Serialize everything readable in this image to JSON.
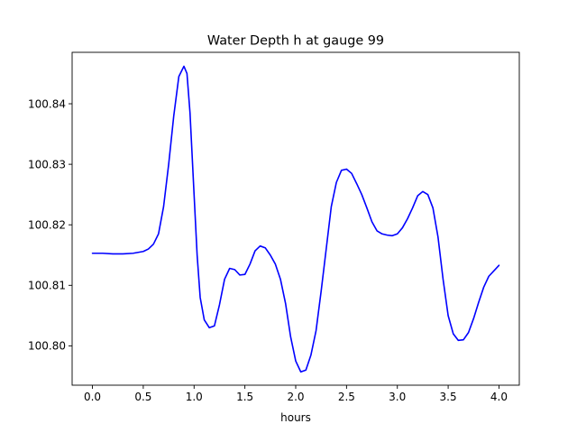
{
  "chart_data": {
    "type": "line",
    "title": "Water Depth h at gauge 99",
    "xlabel": "hours",
    "ylabel": "",
    "xlim": [
      -0.2,
      4.2
    ],
    "ylim": [
      100.7935,
      100.8485
    ],
    "x_ticks": [
      0.0,
      0.5,
      1.0,
      1.5,
      2.0,
      2.5,
      3.0,
      3.5,
      4.0
    ],
    "x_tick_labels": [
      "0.0",
      "0.5",
      "1.0",
      "1.5",
      "2.0",
      "2.5",
      "3.0",
      "3.5",
      "4.0"
    ],
    "y_ticks": [
      100.8,
      100.81,
      100.82,
      100.83,
      100.84
    ],
    "y_tick_labels": [
      "100.80",
      "100.81",
      "100.82",
      "100.83",
      "100.84"
    ],
    "grid": false,
    "legend": "none",
    "series": [
      {
        "color": "#0000ff",
        "x": [
          0.0,
          0.1,
          0.2,
          0.3,
          0.4,
          0.5,
          0.55,
          0.6,
          0.65,
          0.7,
          0.75,
          0.8,
          0.85,
          0.9,
          0.93,
          0.96,
          1.0,
          1.03,
          1.06,
          1.1,
          1.15,
          1.2,
          1.25,
          1.3,
          1.35,
          1.4,
          1.45,
          1.5,
          1.55,
          1.6,
          1.65,
          1.7,
          1.75,
          1.8,
          1.85,
          1.9,
          1.95,
          2.0,
          2.05,
          2.1,
          2.15,
          2.2,
          2.25,
          2.3,
          2.35,
          2.4,
          2.45,
          2.5,
          2.55,
          2.6,
          2.65,
          2.7,
          2.75,
          2.8,
          2.85,
          2.9,
          2.95,
          3.0,
          3.05,
          3.1,
          3.15,
          3.2,
          3.25,
          3.3,
          3.35,
          3.4,
          3.45,
          3.5,
          3.55,
          3.6,
          3.65,
          3.7,
          3.75,
          3.8,
          3.85,
          3.9,
          4.0
        ],
        "y": [
          100.8153,
          100.8153,
          100.8152,
          100.8152,
          100.8153,
          100.8156,
          100.816,
          100.8168,
          100.8185,
          100.823,
          100.83,
          100.838,
          100.8445,
          100.8462,
          100.845,
          100.8385,
          100.825,
          100.815,
          100.808,
          100.8043,
          100.803,
          100.8033,
          100.8068,
          100.811,
          100.8128,
          100.8126,
          100.8117,
          100.8118,
          100.8135,
          100.8157,
          100.8165,
          100.8162,
          100.815,
          100.8135,
          100.811,
          100.807,
          100.8015,
          100.7975,
          100.7957,
          100.796,
          100.7985,
          100.8025,
          100.809,
          100.816,
          100.823,
          100.827,
          100.829,
          100.8292,
          100.8285,
          100.8268,
          100.825,
          100.8228,
          100.8205,
          100.819,
          100.8185,
          100.8183,
          100.8182,
          100.8185,
          100.8195,
          100.821,
          100.8228,
          100.8248,
          100.8255,
          100.825,
          100.8228,
          100.818,
          100.811,
          100.805,
          100.802,
          100.8009,
          100.801,
          100.8022,
          100.8045,
          100.8072,
          100.8097,
          100.8115,
          100.8133
        ]
      }
    ]
  }
}
